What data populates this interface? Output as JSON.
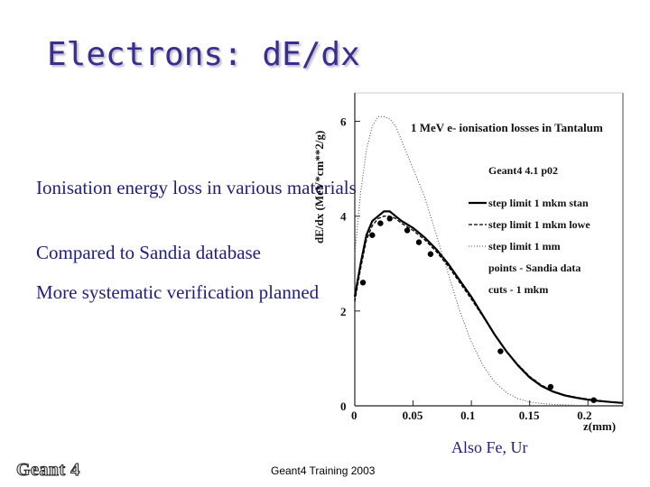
{
  "slide": {
    "title": "Electrons: dE/dx",
    "bullets": [
      "Ionisation energy loss in various materials",
      "Compared to Sandia database",
      "More systematic verification planned"
    ],
    "note": "Also Fe, Ur",
    "footer": "Geant4 Training 2003",
    "logo": "Geant 4"
  },
  "chart_data": {
    "type": "line",
    "title": "1 MeV e- ionisation losses in Tantalum",
    "subtitle": "Geant4 4.1 p02",
    "ylabel": "dE/dx (MeV*cm**2/g)",
    "xlabel": "z(mm)",
    "xlim": [
      0,
      0.23
    ],
    "ylim": [
      0,
      6.6
    ],
    "xticks": [
      "0",
      "0.05",
      "0.1",
      "0.15",
      "0.2"
    ],
    "yticks": [
      "0",
      "2",
      "4",
      "6"
    ],
    "legend_position": "right",
    "series": [
      {
        "name": "step limit 1 mkm stan",
        "style": "solid",
        "x": [
          0.0,
          0.005,
          0.01,
          0.015,
          0.02,
          0.025,
          0.03,
          0.035,
          0.04,
          0.05,
          0.06,
          0.07,
          0.08,
          0.09,
          0.1,
          0.11,
          0.12,
          0.13,
          0.14,
          0.15,
          0.16,
          0.17,
          0.18,
          0.19,
          0.2,
          0.21,
          0.22,
          0.23
        ],
        "y": [
          2.3,
          3.0,
          3.6,
          3.9,
          4.0,
          4.1,
          4.1,
          4.0,
          3.9,
          3.75,
          3.55,
          3.3,
          3.0,
          2.65,
          2.3,
          1.9,
          1.5,
          1.15,
          0.85,
          0.6,
          0.42,
          0.3,
          0.22,
          0.17,
          0.13,
          0.1,
          0.08,
          0.06
        ]
      },
      {
        "name": "step limit 1 mkm lowe",
        "style": "dashed",
        "x": [
          0.0,
          0.005,
          0.01,
          0.015,
          0.02,
          0.025,
          0.03,
          0.035,
          0.04,
          0.05,
          0.06,
          0.07,
          0.08,
          0.09,
          0.1,
          0.11,
          0.12,
          0.13,
          0.14,
          0.15,
          0.16,
          0.17,
          0.18,
          0.19,
          0.2,
          0.21,
          0.22,
          0.23
        ],
        "y": [
          2.2,
          2.9,
          3.5,
          3.8,
          3.95,
          4.0,
          4.0,
          3.95,
          3.85,
          3.7,
          3.5,
          3.25,
          2.95,
          2.6,
          2.25,
          1.88,
          1.5,
          1.15,
          0.87,
          0.62,
          0.44,
          0.31,
          0.23,
          0.18,
          0.14,
          0.11,
          0.08,
          0.06
        ]
      },
      {
        "name": "step limit 1 mm",
        "style": "dotted",
        "x": [
          0.0,
          0.005,
          0.01,
          0.015,
          0.02,
          0.025,
          0.03,
          0.035,
          0.04,
          0.05,
          0.06,
          0.07,
          0.08,
          0.09,
          0.1,
          0.11,
          0.12,
          0.13,
          0.14,
          0.15,
          0.16,
          0.17,
          0.18,
          0.19,
          0.2
        ],
        "y": [
          3.2,
          4.5,
          5.4,
          5.9,
          6.1,
          6.1,
          6.05,
          5.9,
          5.6,
          5.0,
          4.4,
          3.6,
          2.8,
          2.0,
          1.35,
          0.85,
          0.5,
          0.28,
          0.15,
          0.08,
          0.05,
          0.03,
          0.02,
          0.01,
          0.01
        ]
      },
      {
        "name": "points - Sandia data",
        "style": "points",
        "x": [
          0.007,
          0.015,
          0.022,
          0.03,
          0.045,
          0.055,
          0.065,
          0.125,
          0.168,
          0.205
        ],
        "y": [
          2.6,
          3.6,
          3.85,
          3.95,
          3.7,
          3.45,
          3.2,
          1.15,
          0.4,
          0.12
        ]
      }
    ],
    "annotations": [
      "cuts - 1 mkm"
    ]
  }
}
